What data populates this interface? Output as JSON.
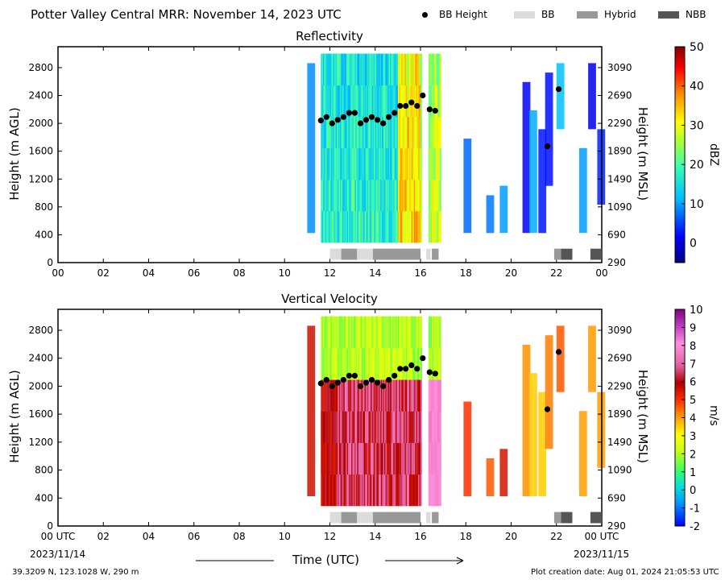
{
  "header": {
    "title": "Potter Valley Central MRR:  November 14, 2023 UTC",
    "legend": [
      {
        "label": "BB Height",
        "marker": "dot",
        "color": "#000000"
      },
      {
        "label": "BB",
        "marker": "box",
        "color": "#dcdcdc"
      },
      {
        "label": "Hybrid",
        "marker": "box",
        "color": "#999999"
      },
      {
        "label": "NBB",
        "marker": "box",
        "color": "#555555"
      }
    ]
  },
  "chart_data": [
    {
      "type": "heatmap",
      "title": "Reflectivity",
      "xlabel": "",
      "ylabel": "Height (m AGL)",
      "y2label": "Height (m MSL)",
      "x_ticks": [
        "00",
        "02",
        "04",
        "06",
        "08",
        "10",
        "12",
        "14",
        "16",
        "18",
        "20",
        "22",
        "00"
      ],
      "y_ticks": [
        0,
        400,
        800,
        1200,
        1600,
        2000,
        2400,
        2800
      ],
      "y2_ticks": [
        290,
        690,
        1090,
        1490,
        1890,
        2290,
        2690,
        3090
      ],
      "xlim": [
        0,
        24
      ],
      "ylim": [
        0,
        3100
      ],
      "colorbar": {
        "label": "dBZ",
        "ticks": [
          0,
          10,
          20,
          30,
          40,
          50
        ],
        "range": [
          -5,
          50
        ]
      },
      "bb_height": {
        "x": [
          11.6,
          11.85,
          12.1,
          12.35,
          12.6,
          12.85,
          13.1,
          13.35,
          13.6,
          13.85,
          14.1,
          14.35,
          14.6,
          14.85,
          15.1,
          15.35,
          15.6,
          15.85,
          16.1,
          16.4,
          16.65,
          21.6,
          22.1
        ],
        "y": [
          2040,
          2090,
          2000,
          2050,
          2090,
          2150,
          2150,
          2000,
          2050,
          2090,
          2050,
          2000,
          2090,
          2150,
          2250,
          2250,
          2300,
          2250,
          2400,
          2200,
          2180,
          1670,
          2490
        ]
      },
      "bb_type_bar": [
        {
          "start": 12.0,
          "end": 12.5,
          "type": "BB"
        },
        {
          "start": 12.5,
          "end": 13.2,
          "type": "Hybrid"
        },
        {
          "start": 13.2,
          "end": 13.9,
          "type": "BB"
        },
        {
          "start": 13.9,
          "end": 16.0,
          "type": "Hybrid"
        },
        {
          "start": 16.25,
          "end": 16.45,
          "type": "BB"
        },
        {
          "start": 16.5,
          "end": 16.8,
          "type": "Hybrid"
        },
        {
          "start": 21.9,
          "end": 22.2,
          "type": "Hybrid"
        },
        {
          "start": 22.2,
          "end": 22.7,
          "type": "NBB"
        },
        {
          "start": 23.5,
          "end": 24.0,
          "type": "NBB"
        }
      ]
    },
    {
      "type": "heatmap",
      "title": "Vertical Velocity",
      "xlabel": "Time (UTC)",
      "ylabel": "Height (m AGL)",
      "y2label": "Height (m MSL)",
      "x_ticks": [
        "00 UTC",
        "02",
        "04",
        "06",
        "08",
        "10",
        "12",
        "14",
        "16",
        "18",
        "20",
        "22",
        "00 UTC"
      ],
      "x_date_labels": {
        "left": "2023/11/14",
        "right": "2023/11/15"
      },
      "y_ticks": [
        0,
        400,
        800,
        1200,
        1600,
        2000,
        2400,
        2800
      ],
      "y2_ticks": [
        290,
        690,
        1090,
        1490,
        1890,
        2290,
        2690,
        3090
      ],
      "xlim": [
        0,
        24
      ],
      "ylim": [
        0,
        3100
      ],
      "colorbar": {
        "label": "m/s",
        "ticks": [
          -2,
          -1,
          0,
          1,
          2,
          3,
          4,
          5,
          6,
          7,
          8,
          9,
          10
        ],
        "range": [
          -2,
          10
        ]
      },
      "bb_height": {
        "x": [
          11.6,
          11.85,
          12.1,
          12.35,
          12.6,
          12.85,
          13.1,
          13.35,
          13.6,
          13.85,
          14.1,
          14.35,
          14.6,
          14.85,
          15.1,
          15.35,
          15.6,
          15.85,
          16.1,
          16.4,
          16.65,
          21.6,
          22.1
        ],
        "y": [
          2040,
          2090,
          2000,
          2050,
          2090,
          2150,
          2150,
          2000,
          2050,
          2090,
          2050,
          2000,
          2090,
          2150,
          2250,
          2250,
          2300,
          2250,
          2400,
          2200,
          2180,
          1670,
          2490
        ]
      },
      "bb_type_bar": [
        {
          "start": 12.0,
          "end": 12.5,
          "type": "BB"
        },
        {
          "start": 12.5,
          "end": 13.2,
          "type": "Hybrid"
        },
        {
          "start": 13.2,
          "end": 13.9,
          "type": "BB"
        },
        {
          "start": 13.9,
          "end": 16.0,
          "type": "Hybrid"
        },
        {
          "start": 16.25,
          "end": 16.45,
          "type": "BB"
        },
        {
          "start": 16.5,
          "end": 16.8,
          "type": "Hybrid"
        },
        {
          "start": 21.9,
          "end": 22.2,
          "type": "Hybrid"
        },
        {
          "start": 22.2,
          "end": 22.7,
          "type": "NBB"
        },
        {
          "start": 23.5,
          "end": 24.0,
          "type": "NBB"
        }
      ]
    }
  ],
  "footer": {
    "location": "39.3209 N, 123.1028 W, 290 m",
    "created": "Plot creation date: Aug 01, 2024 21:05:53 UTC"
  }
}
